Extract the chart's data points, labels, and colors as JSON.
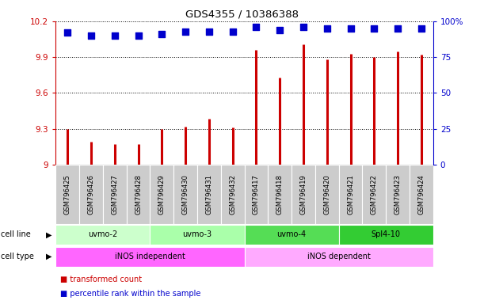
{
  "title": "GDS4355 / 10386388",
  "samples": [
    "GSM796425",
    "GSM796426",
    "GSM796427",
    "GSM796428",
    "GSM796429",
    "GSM796430",
    "GSM796431",
    "GSM796432",
    "GSM796417",
    "GSM796418",
    "GSM796419",
    "GSM796420",
    "GSM796421",
    "GSM796422",
    "GSM796423",
    "GSM796424"
  ],
  "transformed_count": [
    9.3,
    9.19,
    9.17,
    9.17,
    9.3,
    9.32,
    9.38,
    9.31,
    9.96,
    9.73,
    10.01,
    9.88,
    9.93,
    9.9,
    9.95,
    9.92
  ],
  "percentile_rank": [
    92,
    90,
    90,
    90,
    91,
    93,
    93,
    93,
    96,
    94,
    96,
    95,
    95,
    95,
    95,
    95
  ],
  "ylim_left": [
    9.0,
    10.2
  ],
  "ylim_right": [
    0,
    100
  ],
  "yticks_left": [
    9.0,
    9.3,
    9.6,
    9.9,
    10.2
  ],
  "yticks_right": [
    0,
    25,
    50,
    75,
    100
  ],
  "ytick_labels_left": [
    "9",
    "9.3",
    "9.6",
    "9.9",
    "10.2"
  ],
  "ytick_labels_right": [
    "0",
    "25",
    "50",
    "75",
    "100%"
  ],
  "bar_color": "#cc0000",
  "dot_color": "#0000cc",
  "cell_line_groups": [
    {
      "label": "uvmo-2",
      "start": 0,
      "end": 4,
      "color": "#ccffcc"
    },
    {
      "label": "uvmo-3",
      "start": 4,
      "end": 8,
      "color": "#aaffaa"
    },
    {
      "label": "uvmo-4",
      "start": 8,
      "end": 12,
      "color": "#55dd55"
    },
    {
      "label": "Spl4-10",
      "start": 12,
      "end": 16,
      "color": "#33cc33"
    }
  ],
  "cell_type_groups": [
    {
      "label": "iNOS independent",
      "start": 0,
      "end": 8,
      "color": "#ff66ff"
    },
    {
      "label": "iNOS dependent",
      "start": 8,
      "end": 16,
      "color": "#ffaaff"
    }
  ],
  "bar_color_hex": "#cc0000",
  "dot_color_hex": "#0000cc",
  "grid_color": "black",
  "background_color": "white",
  "xtick_bg_color": "#cccccc",
  "dot_size": 35,
  "bar_linewidth": 2.2
}
